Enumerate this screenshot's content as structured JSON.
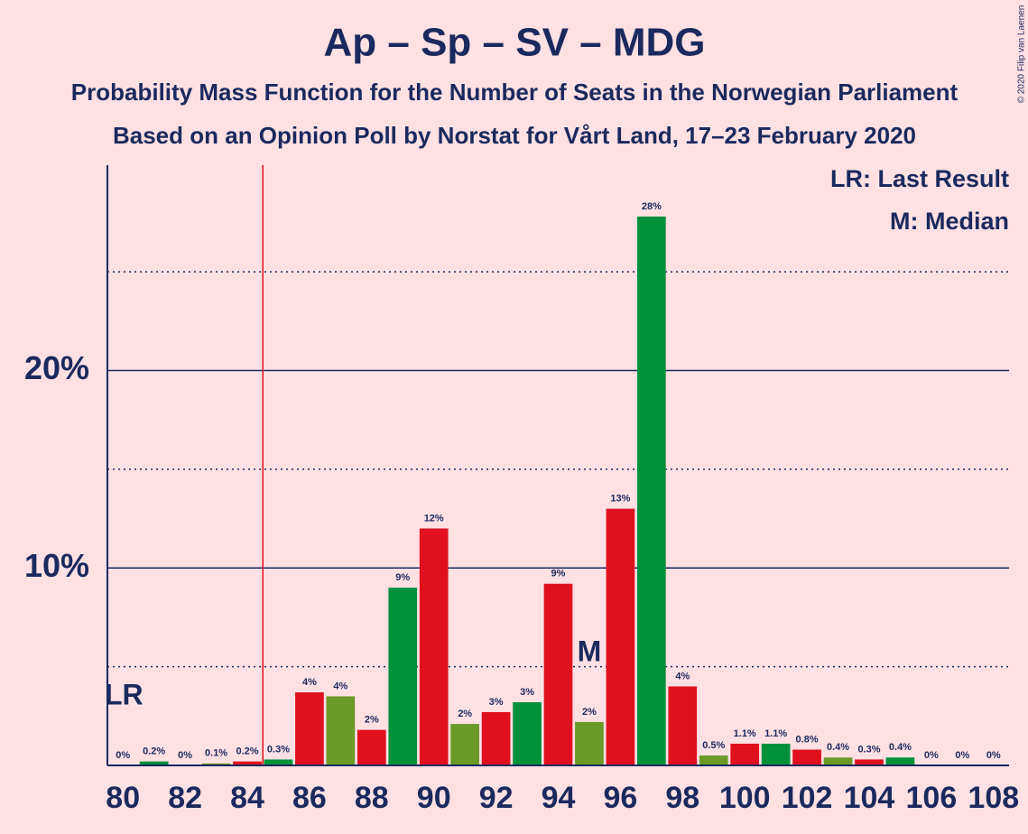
{
  "chart_data": {
    "type": "bar",
    "title": "Ap – Sp – SV – MDG",
    "subtitle": "Probability Mass Function for the Number of Seats in the Norwegian Parliament",
    "subtitle2": "Based on an Opinion Poll by Norstat for Vårt Land, 17–23 February 2020",
    "copyright": "© 2020 Filip van Laenen",
    "legend_lr": "LR: Last Result",
    "legend_median": "M: Median",
    "lr_label": "LR",
    "median_label": "M",
    "last_result_x": 84.5,
    "median": 95,
    "x": [
      80,
      81,
      82,
      83,
      84,
      85,
      86,
      87,
      88,
      89,
      90,
      91,
      92,
      93,
      94,
      95,
      96,
      97,
      98,
      99,
      100,
      101,
      102,
      103,
      104,
      105,
      106,
      107,
      108
    ],
    "values": [
      0,
      0.2,
      0,
      0.1,
      0.2,
      0.3,
      3.7,
      3.5,
      1.8,
      9.0,
      12.0,
      2.1,
      2.7,
      3.2,
      9.2,
      2.2,
      13.0,
      27.8,
      4.0,
      0.5,
      1.1,
      1.1,
      0.8,
      0.4,
      0.3,
      0.4,
      0,
      0,
      0
    ],
    "value_labels": [
      "0%",
      "0.2%",
      "0%",
      "0.1%",
      "0.2%",
      "0.3%",
      "4%",
      "4%",
      "2%",
      "9%",
      "12%",
      "2%",
      "3%",
      "3%",
      "9%",
      "2%",
      "13%",
      "28%",
      "4%",
      "0.5%",
      "1.1%",
      "1.1%",
      "0.8%",
      "0.4%",
      "0.3%",
      "0.4%",
      "0%",
      "0%",
      "0%"
    ],
    "colors": [
      "#e0101f",
      "#00913a",
      "#e0101f",
      "#6a9a27",
      "#e0101f",
      "#00913a",
      "#e0101f",
      "#6a9a27",
      "#e0101f",
      "#00913a",
      "#e0101f",
      "#6a9a27",
      "#e0101f",
      "#00913a",
      "#e0101f",
      "#6a9a27",
      "#e0101f",
      "#00913a",
      "#e0101f",
      "#6a9a27",
      "#e0101f",
      "#00913a",
      "#e0101f",
      "#6a9a27",
      "#e0101f",
      "#00913a",
      "#e0101f",
      "#6a9a27",
      "#e0101f"
    ],
    "xlim": [
      79.5,
      108.5
    ],
    "xticks": [
      80,
      82,
      84,
      86,
      88,
      90,
      92,
      94,
      96,
      98,
      100,
      102,
      104,
      106,
      108
    ],
    "ylim": [
      0,
      30.4
    ],
    "yticks": [
      {
        "value": 10,
        "label": "10%"
      },
      {
        "value": 20,
        "label": "20%"
      }
    ],
    "minor_yticks": [
      5,
      15,
      25
    ],
    "grid": true
  }
}
